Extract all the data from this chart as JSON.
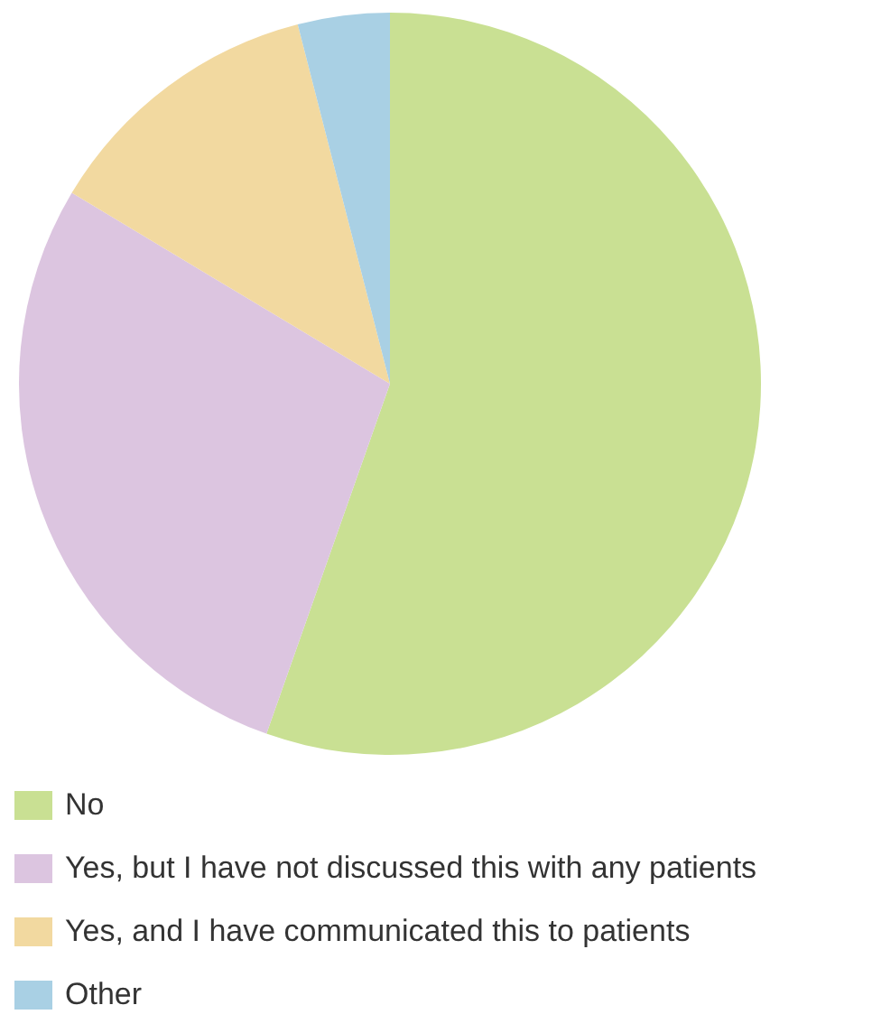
{
  "chart_data": {
    "type": "pie",
    "categories": [
      "No",
      "Yes, but I have not discussed this with any patients",
      "Yes, and I have communicated this to patients",
      "Other"
    ],
    "values": [
      55.4,
      28.2,
      12.4,
      4.0
    ],
    "colors": [
      "#c9e093",
      "#dcc5e0",
      "#f2d9a0",
      "#a9d0e4"
    ],
    "legend": "bottom"
  }
}
